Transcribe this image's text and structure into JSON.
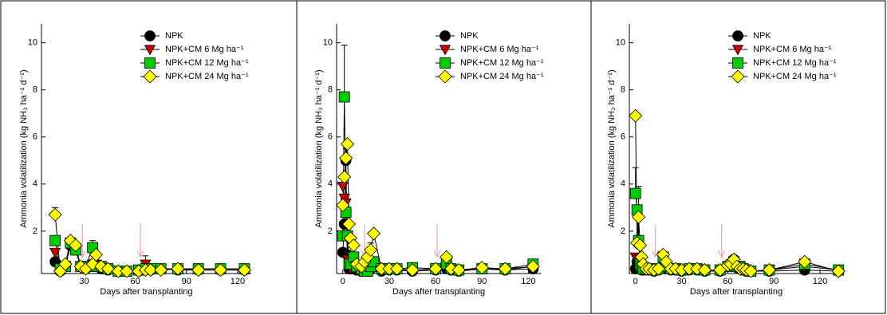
{
  "chart_data": [
    {
      "type": "line",
      "x_label": "Days after transplanting",
      "y_label": "Ammonia volatilization (kg NH₃ ha⁻¹ d⁻¹)",
      "xlim": [
        5,
        128
      ],
      "ylim": [
        0.2,
        10.8
      ],
      "xticks": [
        30,
        60,
        90,
        120
      ],
      "yticks": [
        2,
        4,
        6,
        8,
        10
      ],
      "arrows": [
        29,
        63
      ],
      "x": [
        13,
        16,
        19,
        22,
        25,
        28,
        31,
        35,
        37,
        40,
        44,
        50,
        55,
        62,
        66,
        69,
        75,
        85,
        97,
        110,
        124
      ],
      "series": [
        {
          "name": "NPK",
          "color": "#000000",
          "marker": "circle",
          "values": [
            0.7,
            0.3,
            0.5,
            1.4,
            1.3,
            0.5,
            0.4,
            0.6,
            0.5,
            0.4,
            0.35,
            0.3,
            0.3,
            0.3,
            0.4,
            0.35,
            0.4,
            0.35,
            0.35,
            0.35,
            0.35
          ]
        },
        {
          "name": "NPK+CM 6 Mg ha⁻¹",
          "color": "#cc0000",
          "marker": "triangle",
          "values": [
            1.1,
            0.4,
            0.5,
            1.4,
            1.3,
            0.5,
            0.5,
            0.6,
            0.6,
            0.5,
            0.4,
            0.3,
            0.3,
            0.35,
            0.6,
            0.4,
            0.4,
            0.4,
            0.4,
            0.4,
            0.4
          ],
          "errors": [
            null,
            null,
            null,
            null,
            null,
            null,
            null,
            null,
            null,
            null,
            null,
            null,
            null,
            null,
            0.35,
            null,
            null,
            null,
            null,
            null,
            null
          ]
        },
        {
          "name": "NPK+CM 12 Mg ha⁻¹",
          "color": "#00cc00",
          "marker": "square",
          "values": [
            1.6,
            0.4,
            0.5,
            1.5,
            1.2,
            0.5,
            0.5,
            1.3,
            0.5,
            0.5,
            0.4,
            0.3,
            0.3,
            0.35,
            0.4,
            0.4,
            0.4,
            0.4,
            0.4,
            0.4,
            0.4
          ],
          "errors": [
            null,
            null,
            null,
            null,
            null,
            null,
            null,
            0.3,
            null,
            null,
            null,
            null,
            null,
            null,
            null,
            null,
            null,
            null,
            null,
            null,
            null
          ]
        },
        {
          "name": "NPK+CM 24 Mg ha⁻¹",
          "color": "#ffff00",
          "marker": "diamond",
          "values": [
            2.7,
            0.3,
            0.6,
            1.6,
            1.4,
            0.5,
            0.4,
            0.6,
            1.0,
            0.5,
            0.4,
            0.3,
            0.3,
            0.3,
            0.35,
            0.35,
            0.35,
            0.4,
            0.35,
            0.35,
            0.35
          ],
          "errors": [
            0.3,
            null,
            null,
            null,
            null,
            null,
            null,
            null,
            null,
            null,
            null,
            null,
            null,
            null,
            null,
            null,
            null,
            null,
            null,
            null,
            null
          ]
        }
      ]
    },
    {
      "type": "line",
      "x_label": "Days after transplanting",
      "y_label": "Ammonia volatilization (kg NH₃ ha⁻¹ d⁻¹)",
      "xlim": [
        -4,
        128
      ],
      "ylim": [
        0.2,
        10.8
      ],
      "xticks": [
        0,
        30,
        60,
        90,
        120
      ],
      "yticks": [
        2,
        4,
        6,
        8,
        10
      ],
      "arrows": [
        14,
        61
      ],
      "x": [
        0,
        1,
        2,
        3,
        4,
        5,
        7,
        9,
        12,
        14,
        16,
        18,
        20,
        25,
        30,
        35,
        45,
        60,
        67,
        70,
        75,
        90,
        105,
        123
      ],
      "series": [
        {
          "name": "NPK",
          "color": "#000000",
          "marker": "circle",
          "values": [
            1.1,
            2.3,
            5.0,
            1.0,
            0.4,
            0.4,
            0.4,
            0.35,
            0.3,
            0.3,
            0.3,
            0.4,
            0.6,
            0.3,
            0.35,
            0.35,
            0.3,
            0.35,
            0.4,
            0.35,
            0.3,
            0.4,
            0.35,
            0.4
          ],
          "errors": [
            null,
            null,
            0.5,
            null,
            null,
            null,
            null,
            null,
            null,
            null,
            null,
            null,
            null,
            null,
            null,
            null,
            null,
            null,
            null,
            null,
            null,
            null,
            null,
            null
          ]
        },
        {
          "name": "NPK+CM 6 Mg ha⁻¹",
          "color": "#cc0000",
          "marker": "triangle",
          "values": [
            3.9,
            3.4,
            3.2,
            0.8,
            0.5,
            0.4,
            0.5,
            0.4,
            0.3,
            0.3,
            0.3,
            0.4,
            0.5,
            0.35,
            0.35,
            0.35,
            0.3,
            0.35,
            0.5,
            0.35,
            0.3,
            0.4,
            0.35,
            0.5
          ]
        },
        {
          "name": "NPK+CM 12 Mg ha⁻¹",
          "color": "#00cc00",
          "marker": "square",
          "values": [
            1.8,
            7.7,
            2.8,
            1.8,
            0.6,
            0.6,
            0.9,
            0.5,
            0.4,
            0.3,
            0.3,
            0.5,
            0.7,
            0.4,
            0.4,
            0.4,
            0.45,
            0.4,
            0.6,
            0.4,
            0.35,
            0.4,
            0.4,
            0.6
          ],
          "errors": [
            null,
            2.2,
            null,
            null,
            null,
            null,
            null,
            null,
            null,
            null,
            null,
            1.0,
            null,
            null,
            null,
            null,
            null,
            null,
            null,
            null,
            null,
            null,
            null,
            null
          ]
        },
        {
          "name": "NPK+CM 24 Mg ha⁻¹",
          "color": "#ffff00",
          "marker": "diamond",
          "values": [
            3.1,
            4.3,
            5.1,
            5.7,
            2.3,
            1.7,
            1.4,
            0.6,
            0.5,
            0.7,
            0.9,
            1.2,
            1.9,
            0.4,
            0.4,
            0.4,
            0.35,
            0.4,
            0.9,
            0.4,
            0.35,
            0.45,
            0.4,
            0.5
          ]
        }
      ]
    },
    {
      "type": "line",
      "x_label": "Days after transplanting",
      "y_label": "Ammonia volatilization (kg NH₃ ha⁻¹ d⁻¹)",
      "xlim": [
        -4,
        135
      ],
      "ylim": [
        0.2,
        10.8
      ],
      "xticks": [
        0,
        30,
        60,
        90,
        120
      ],
      "yticks": [
        2,
        4,
        6,
        8,
        10
      ],
      "arrows": [
        13,
        56
      ],
      "x": [
        0,
        1,
        2,
        3,
        4,
        5,
        7,
        9,
        12,
        15,
        18,
        20,
        23,
        26,
        30,
        35,
        40,
        45,
        55,
        60,
        62,
        64,
        66,
        68,
        70,
        72,
        75,
        87,
        110,
        132
      ],
      "series": [
        {
          "name": "NPK",
          "color": "#000000",
          "marker": "circle",
          "values": [
            0.4,
            0.7,
            0.6,
            0.4,
            0.35,
            0.35,
            0.35,
            0.35,
            0.3,
            0.35,
            0.7,
            0.4,
            0.35,
            0.35,
            0.3,
            0.35,
            0.35,
            0.3,
            0.3,
            0.5,
            0.55,
            0.8,
            0.45,
            0.4,
            0.35,
            0.3,
            0.3,
            0.3,
            0.35,
            0.3
          ]
        },
        {
          "name": "NPK+CM 6 Mg ha⁻¹",
          "color": "#cc0000",
          "marker": "triangle",
          "values": [
            0.9,
            0.8,
            0.7,
            0.5,
            0.4,
            0.4,
            0.4,
            0.4,
            0.35,
            0.4,
            0.8,
            0.5,
            0.4,
            0.4,
            0.35,
            0.4,
            0.4,
            0.35,
            0.35,
            0.5,
            0.6,
            0.7,
            0.5,
            0.4,
            0.4,
            0.35,
            0.3,
            0.35,
            0.5,
            0.35
          ]
        },
        {
          "name": "NPK+CM 12 Mg ha⁻¹",
          "color": "#00cc00",
          "marker": "square",
          "values": [
            3.6,
            2.9,
            1.6,
            0.6,
            0.5,
            0.4,
            0.4,
            0.4,
            0.35,
            0.4,
            0.9,
            0.5,
            0.4,
            0.4,
            0.35,
            0.4,
            0.4,
            0.35,
            0.35,
            0.5,
            0.5,
            0.7,
            0.5,
            0.5,
            0.4,
            0.35,
            0.3,
            0.35,
            0.6,
            0.35
          ],
          "errors": [
            1.1,
            null,
            1.0,
            null,
            null,
            null,
            null,
            null,
            null,
            null,
            null,
            null,
            null,
            null,
            null,
            null,
            null,
            null,
            null,
            null,
            null,
            null,
            null,
            null,
            null,
            null,
            null,
            null,
            null,
            null
          ]
        },
        {
          "name": "NPK+CM 24 Mg ha⁻¹",
          "color": "#ffff00",
          "marker": "diamond",
          "values": [
            6.9,
            1.5,
            2.6,
            1.4,
            0.9,
            0.6,
            0.4,
            0.4,
            0.35,
            0.4,
            1.0,
            0.7,
            0.4,
            0.4,
            0.35,
            0.4,
            0.4,
            0.35,
            0.35,
            0.55,
            0.6,
            0.8,
            0.5,
            0.4,
            0.4,
            0.35,
            0.3,
            0.35,
            0.7,
            0.3
          ],
          "errors": [
            null,
            null,
            1.3,
            null,
            null,
            null,
            null,
            null,
            null,
            null,
            null,
            null,
            null,
            null,
            null,
            null,
            null,
            null,
            null,
            null,
            null,
            null,
            null,
            null,
            null,
            null,
            null,
            null,
            null,
            null
          ]
        }
      ]
    }
  ]
}
